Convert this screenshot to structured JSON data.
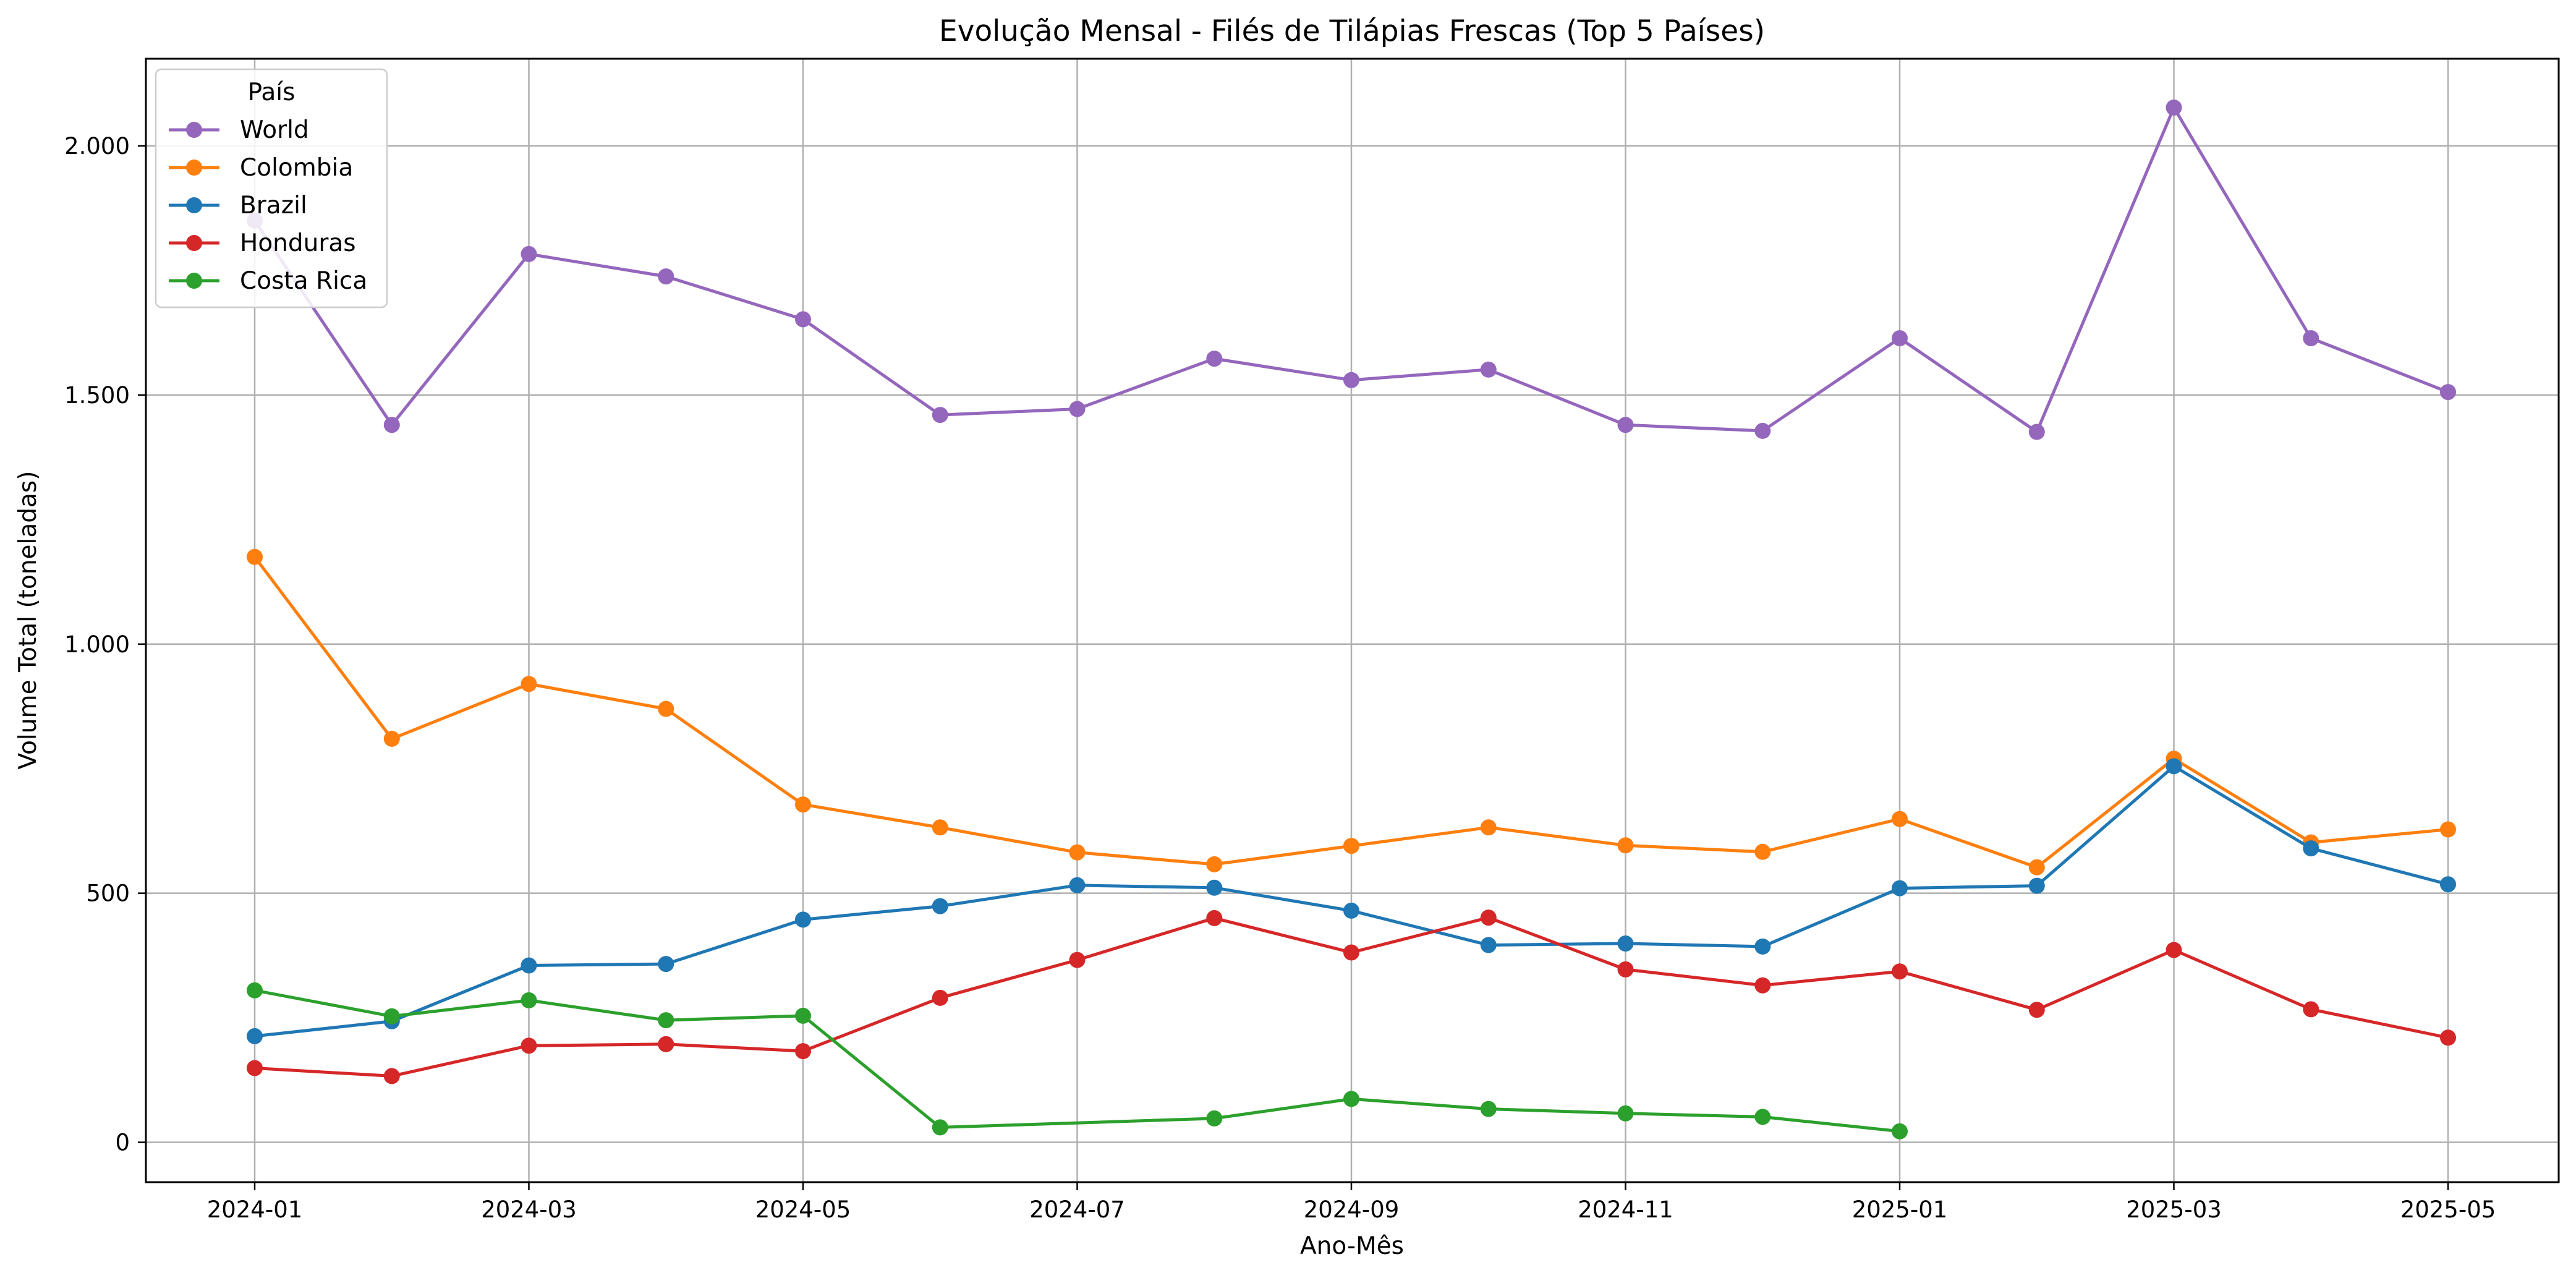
{
  "chart_data": {
    "type": "line",
    "title": "Evolução Mensal - Filés de Tilápias Frescas (Top 5 Países)",
    "xlabel": "Ano-Mês",
    "ylabel": "Volume Total (toneladas)",
    "x": [
      "2024-01",
      "2024-02",
      "2024-03",
      "2024-04",
      "2024-05",
      "2024-06",
      "2024-07",
      "2024-08",
      "2024-09",
      "2024-10",
      "2024-11",
      "2024-12",
      "2025-01",
      "2025-02",
      "2025-03",
      "2025-04",
      "2025-05"
    ],
    "x_tick_labels": [
      "2024-01",
      "2024-03",
      "2024-05",
      "2024-07",
      "2024-09",
      "2024-11",
      "2025-01",
      "2025-03",
      "2025-05"
    ],
    "y_ticks": [
      0,
      500,
      1000,
      1500,
      2000
    ],
    "y_tick_labels": [
      "0",
      "500",
      "1.000",
      "1.500",
      "2.000"
    ],
    "ylim": [
      -80,
      2175
    ],
    "grid": true,
    "legend": {
      "title": "País",
      "placement": "top-left"
    },
    "series": [
      {
        "name": "World",
        "color": "#9467bd",
        "values": [
          1850,
          1440,
          1783,
          1738,
          1652,
          1460,
          1472,
          1573,
          1530,
          1551,
          1440,
          1428,
          1614,
          1426,
          2077,
          1614,
          1506
        ]
      },
      {
        "name": "Colombia",
        "color": "#ff7f0e",
        "values": [
          1175,
          810,
          920,
          870,
          678,
          632,
          582,
          558,
          595,
          632,
          596,
          583,
          649,
          552,
          770,
          602,
          628
        ]
      },
      {
        "name": "Brazil",
        "color": "#1f77b4",
        "values": [
          213,
          243,
          355,
          358,
          447,
          474,
          516,
          511,
          465,
          396,
          399,
          393,
          510,
          515,
          755,
          590,
          518
        ]
      },
      {
        "name": "Honduras",
        "color": "#d62728",
        "values": [
          149,
          133,
          194,
          197,
          183,
          290,
          366,
          450,
          381,
          451,
          347,
          315,
          343,
          266,
          386,
          267,
          210
        ]
      },
      {
        "name": "Costa Rica",
        "color": "#2ca02c",
        "values": [
          305,
          253,
          285,
          245,
          254,
          30,
          null,
          48,
          87,
          67,
          58,
          51,
          22,
          null,
          null,
          null,
          null
        ]
      }
    ]
  }
}
